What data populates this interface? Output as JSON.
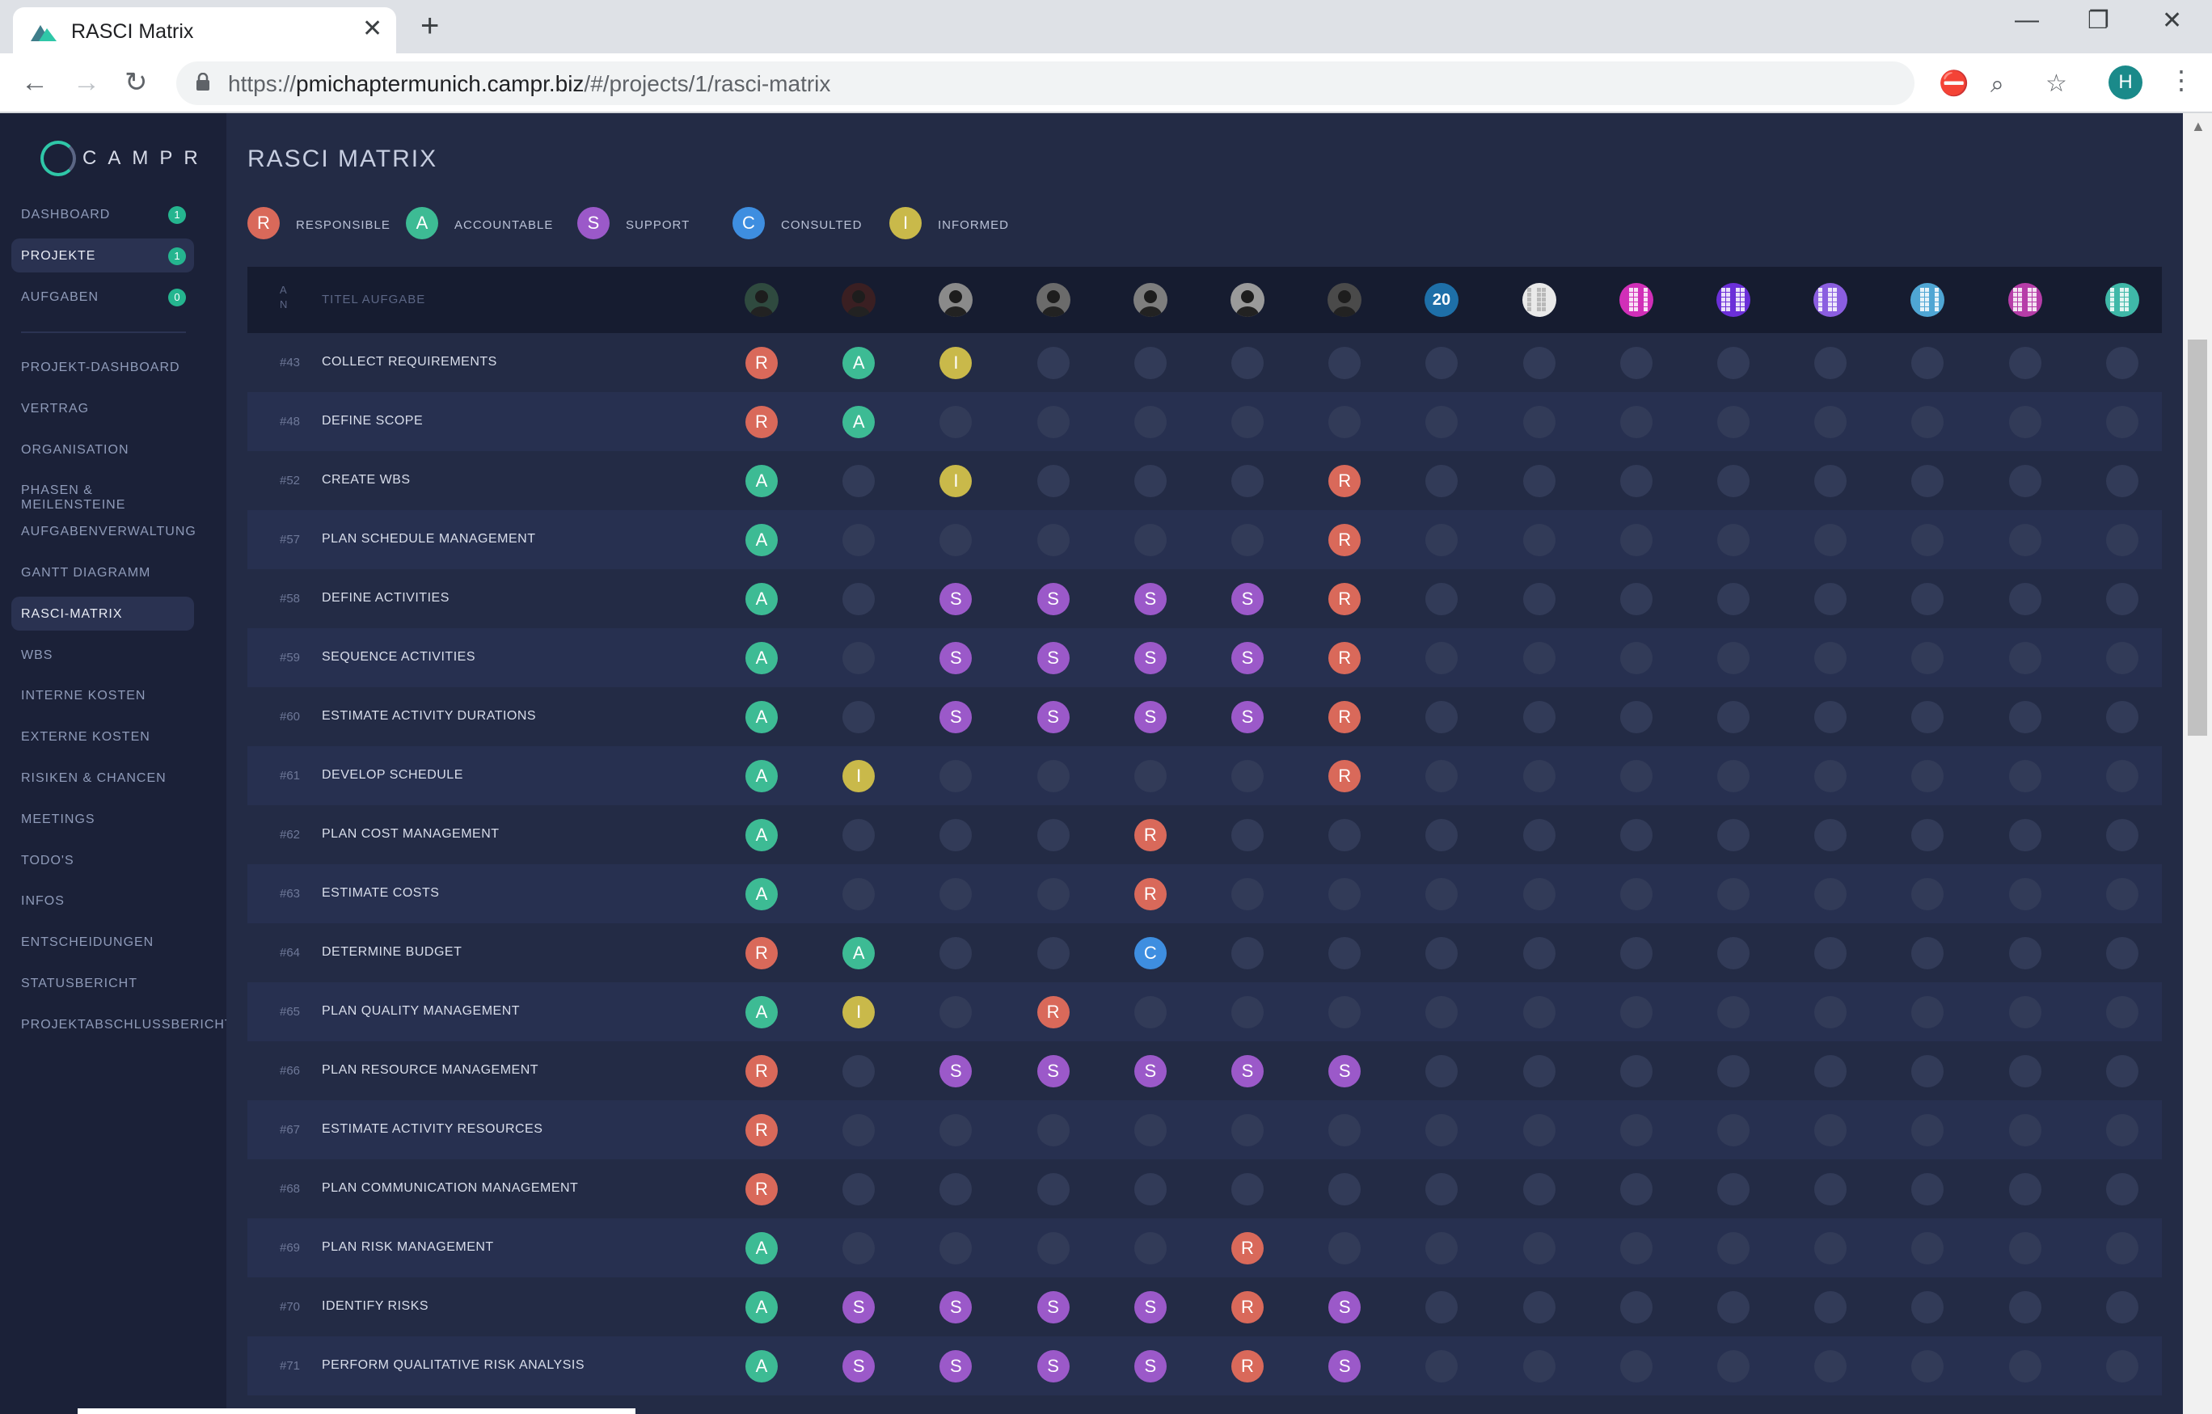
{
  "browser": {
    "tab_title": "RASCI Matrix",
    "url_domain": "pmichaptermunich.campr.biz",
    "url_scheme": "https://",
    "url_path": "/#/projects/1/rasci-matrix",
    "profile_initial": "H"
  },
  "app": {
    "logo_text": "CAMPR",
    "page_title": "RASCI MATRIX"
  },
  "sidebar": {
    "top_items": [
      {
        "label": "DASHBOARD",
        "badge": "1",
        "active": false
      },
      {
        "label": "PROJEKTE",
        "badge": "1",
        "active": true
      },
      {
        "label": "AUFGABEN",
        "badge": "0",
        "active": false
      }
    ],
    "items": [
      {
        "label": "PROJEKT-DASHBOARD",
        "active": false
      },
      {
        "label": "VERTRAG",
        "active": false
      },
      {
        "label": "ORGANISATION",
        "active": false
      },
      {
        "label": "PHASEN & MEILENSTEINE",
        "active": false
      },
      {
        "label": "AUFGABENVERWALTUNG",
        "active": false
      },
      {
        "label": "GANTT DIAGRAMM",
        "active": false
      },
      {
        "label": "RASCI-MATRIX",
        "active": true
      },
      {
        "label": "WBS",
        "active": false
      },
      {
        "label": "INTERNE KOSTEN",
        "active": false
      },
      {
        "label": "EXTERNE KOSTEN",
        "active": false
      },
      {
        "label": "RISIKEN & CHANCEN",
        "active": false
      },
      {
        "label": "MEETINGS",
        "active": false
      },
      {
        "label": "TODO'S",
        "active": false
      },
      {
        "label": "INFOS",
        "active": false
      },
      {
        "label": "ENTSCHEIDUNGEN",
        "active": false
      },
      {
        "label": "STATUSBERICHT",
        "active": false
      },
      {
        "label": "PROJEKTABSCHLUSSBERICHT",
        "active": false
      }
    ]
  },
  "legend": [
    {
      "letter": "R",
      "label": "RESPONSIBLE",
      "color": "#d9695a"
    },
    {
      "letter": "A",
      "label": "ACCOUNTABLE",
      "color": "#3dbb94"
    },
    {
      "letter": "S",
      "label": "SUPPORT",
      "color": "#9b59c9"
    },
    {
      "letter": "C",
      "label": "CONSULTED",
      "color": "#3e8ee0"
    },
    {
      "letter": "I",
      "label": "INFORMED",
      "color": "#c9b94a"
    }
  ],
  "table": {
    "header_an": "A N",
    "header_title": "TITEL AUFGABE",
    "member_avatars": [
      {
        "icon": "person-photo-icon",
        "color": "#2f4a3f"
      },
      {
        "icon": "person-photo-icon",
        "color": "#3a1f22"
      },
      {
        "icon": "person-photo-icon",
        "color": "#8a8a8a"
      },
      {
        "icon": "person-photo-icon",
        "color": "#6b6b6b"
      },
      {
        "icon": "person-photo-icon",
        "color": "#7e7e7e"
      },
      {
        "icon": "person-photo-icon",
        "color": "#9a9a9a"
      },
      {
        "icon": "person-photo-icon",
        "color": "#4a4a4a"
      },
      {
        "icon": "logo-20-icon",
        "color": "#1e6fa8"
      },
      {
        "icon": "identicon-icon",
        "color": "#e9e9e9"
      },
      {
        "icon": "identicon-icon",
        "color": "#d12fb8"
      },
      {
        "icon": "identicon-icon",
        "color": "#6b2fd8"
      },
      {
        "icon": "identicon-icon",
        "color": "#8b5ee0"
      },
      {
        "icon": "identicon-icon",
        "color": "#4fa6d4"
      },
      {
        "icon": "identicon-icon",
        "color": "#b63da8"
      },
      {
        "icon": "identicon-icon",
        "color": "#3fb8a8"
      }
    ],
    "rows": [
      {
        "id": "#43",
        "title": "COLLECT REQUIREMENTS",
        "cells": [
          "R",
          "A",
          "I",
          "",
          "",
          "",
          "",
          "",
          "",
          "",
          "",
          "",
          "",
          "",
          ""
        ]
      },
      {
        "id": "#48",
        "title": "DEFINE SCOPE",
        "cells": [
          "R",
          "A",
          "",
          "",
          "",
          "",
          "",
          "",
          "",
          "",
          "",
          "",
          "",
          "",
          ""
        ]
      },
      {
        "id": "#52",
        "title": "CREATE WBS",
        "cells": [
          "A",
          "",
          "I",
          "",
          "",
          "",
          "R",
          "",
          "",
          "",
          "",
          "",
          "",
          "",
          ""
        ]
      },
      {
        "id": "#57",
        "title": "PLAN SCHEDULE MANAGEMENT",
        "cells": [
          "A",
          "",
          "",
          "",
          "",
          "",
          "R",
          "",
          "",
          "",
          "",
          "",
          "",
          "",
          ""
        ]
      },
      {
        "id": "#58",
        "title": "DEFINE ACTIVITIES",
        "cells": [
          "A",
          "",
          "S",
          "S",
          "S",
          "S",
          "R",
          "",
          "",
          "",
          "",
          "",
          "",
          "",
          ""
        ]
      },
      {
        "id": "#59",
        "title": "SEQUENCE ACTIVITIES",
        "cells": [
          "A",
          "",
          "S",
          "S",
          "S",
          "S",
          "R",
          "",
          "",
          "",
          "",
          "",
          "",
          "",
          ""
        ]
      },
      {
        "id": "#60",
        "title": "ESTIMATE ACTIVITY DURATIONS",
        "cells": [
          "A",
          "",
          "S",
          "S",
          "S",
          "S",
          "R",
          "",
          "",
          "",
          "",
          "",
          "",
          "",
          ""
        ]
      },
      {
        "id": "#61",
        "title": "DEVELOP SCHEDULE",
        "cells": [
          "A",
          "I",
          "",
          "",
          "",
          "",
          "R",
          "",
          "",
          "",
          "",
          "",
          "",
          "",
          ""
        ]
      },
      {
        "id": "#62",
        "title": "PLAN COST MANAGEMENT",
        "cells": [
          "A",
          "",
          "",
          "",
          "R",
          "",
          "",
          "",
          "",
          "",
          "",
          "",
          "",
          "",
          ""
        ]
      },
      {
        "id": "#63",
        "title": "ESTIMATE COSTS",
        "cells": [
          "A",
          "",
          "",
          "",
          "R",
          "",
          "",
          "",
          "",
          "",
          "",
          "",
          "",
          "",
          ""
        ]
      },
      {
        "id": "#64",
        "title": "DETERMINE BUDGET",
        "cells": [
          "R",
          "A",
          "",
          "",
          "C",
          "",
          "",
          "",
          "",
          "",
          "",
          "",
          "",
          "",
          ""
        ]
      },
      {
        "id": "#65",
        "title": "PLAN QUALITY MANAGEMENT",
        "cells": [
          "A",
          "I",
          "",
          "R",
          "",
          "",
          "",
          "",
          "",
          "",
          "",
          "",
          "",
          "",
          ""
        ]
      },
      {
        "id": "#66",
        "title": "PLAN RESOURCE MANAGEMENT",
        "cells": [
          "R",
          "",
          "S",
          "S",
          "S",
          "S",
          "S",
          "",
          "",
          "",
          "",
          "",
          "",
          "",
          ""
        ]
      },
      {
        "id": "#67",
        "title": "ESTIMATE ACTIVITY RESOURCES",
        "cells": [
          "R",
          "",
          "",
          "",
          "",
          "",
          "",
          "",
          "",
          "",
          "",
          "",
          "",
          "",
          ""
        ]
      },
      {
        "id": "#68",
        "title": "PLAN COMMUNICATION MANAGEMENT",
        "cells": [
          "R",
          "",
          "",
          "",
          "",
          "",
          "",
          "",
          "",
          "",
          "",
          "",
          "",
          "",
          ""
        ]
      },
      {
        "id": "#69",
        "title": "PLAN RISK MANAGEMENT",
        "cells": [
          "A",
          "",
          "",
          "",
          "",
          "R",
          "",
          "",
          "",
          "",
          "",
          "",
          "",
          "",
          ""
        ]
      },
      {
        "id": "#70",
        "title": "IDENTIFY RISKS",
        "cells": [
          "A",
          "S",
          "S",
          "S",
          "S",
          "R",
          "S",
          "",
          "",
          "",
          "",
          "",
          "",
          "",
          ""
        ]
      },
      {
        "id": "#71",
        "title": "PERFORM QUALITATIVE RISK ANALYSIS",
        "cells": [
          "A",
          "S",
          "S",
          "S",
          "S",
          "R",
          "S",
          "",
          "",
          "",
          "",
          "",
          "",
          "",
          ""
        ]
      }
    ]
  }
}
